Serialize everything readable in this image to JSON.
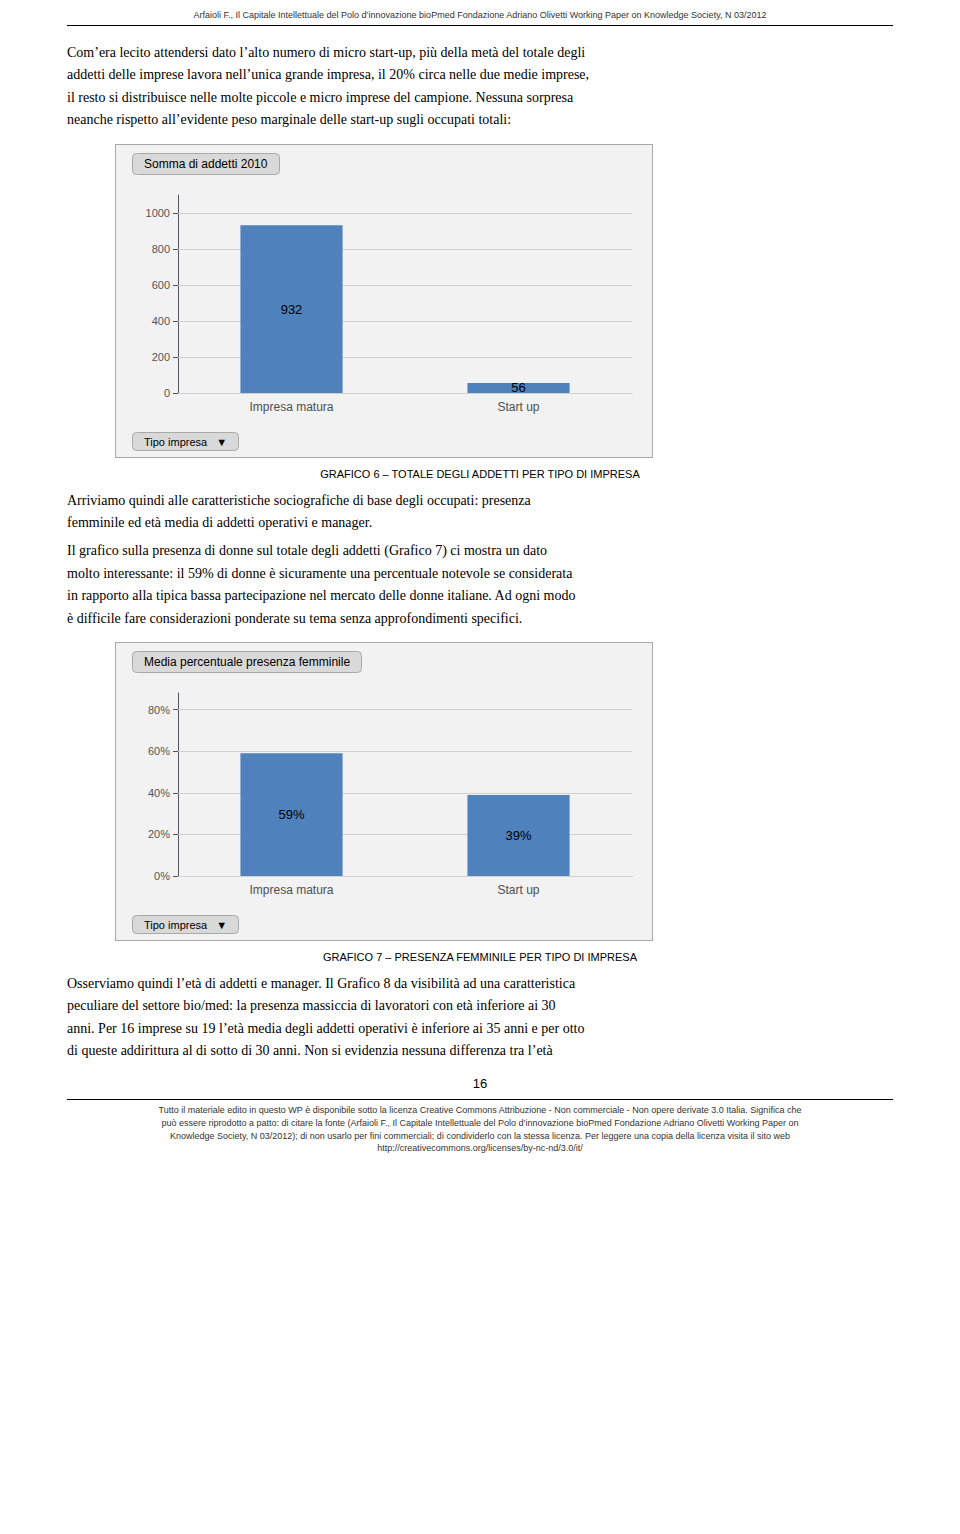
{
  "annotations": [
    "Arfaioli F., Il Capitale Intellettuale del Polo d’innovazione bioPmed Fondazione Adriano Olivetti Working Paper on Knowledge Society, N 03/2012",
    "Com’era lecito attendersi dato l’alto numero di micro start-up, più della metà del totale degli\naddetti delle imprese lavora nell’unica grande impresa, il 20% circa nelle due medie imprese,\nil resto si distribuisce nelle molte piccole e micro imprese del campione. Nessuna sorpresa\nneanche rispetto all’evidente peso marginale delle start-up sugli occupati totali:",
    "Arriviamo quindi alle caratteristiche sociografiche di base degli occupati: presenza\nfemminile ed età media di addetti operativi e manager.",
    "Il grafico sulla presenza di donne sul totale degli addetti (Grafico 7) ci mostra un dato\nmolto interessante: il 59% di donne è sicuramente una percentuale notevole se considerata\nin rapporto alla tipica bassa partecipazione nel mercato delle donne italiane. Ad ogni modo\nè difficile fare considerazioni ponderate su tema senza approfondimenti specifici.",
    "Osserviamo quindi l’età di addetti e manager. Il Grafico 8 da visibilità ad una caratteristica\npeculiare del settore bio/med: la presenza massiccia di lavoratori con età inferiore ai 30\nanni. Per 16 imprese su 19 l’età media degli addetti operativi è inferiore ai 35 anni e per otto\ndi queste addirittura al di sotto di 30 anni. Non si evidenzia nessuna differenza tra l’età",
    "16",
    "Tutto il materiale edito in questo WP è disponibile sotto la licenza Creative Commons Attribuzione - Non commerciale - Non opere derivate 3.0 Italia. Significa che",
    "può essere riprodotto a patto: di citare la fonte (Arfaioli F., Il Capitale Intellettuale del Polo d’innovazione bioPmed Fondazione Adriano Olivetti Working Paper on",
    "Knowledge Society, N 03/2012); di non usarlo per fini commerciali; di condividerlo con la stessa licenza. Per leggere una copia della licenza visita il sito web",
    "http://creativecommons.org/licenses/by-nc-nd/3.0/it/"
  ],
  "chart_data": [
    {
      "type": "bar",
      "title": "Somma di addetti 2010",
      "subtitle": "GRAFICO 6 – TOTALE DEGLI ADDETTI PER TIPO DI IMPRESA",
      "annotations": [
        "Tipo impresa",
        "▼"
      ],
      "categories": [
        "Impresa matura",
        "Start up"
      ],
      "values": [
        932,
        56
      ],
      "color": "#4f81bd",
      "ylim": [
        0,
        1100
      ],
      "yticks": [
        0,
        200,
        400,
        600,
        800,
        1000
      ],
      "grid": true,
      "data_labels": true
    },
    {
      "type": "bar",
      "title": "Media percentuale presenza femminile",
      "subtitle": "GRAFICO 7 – PRESENZA FEMMINILE PER TIPO DI IMPRESA",
      "annotations": [
        "Tipo impresa",
        "▼"
      ],
      "categories": [
        "Impresa matura",
        "Start up"
      ],
      "values": [
        0.59,
        0.39
      ],
      "value_labels": [
        "59%",
        "39%"
      ],
      "color": "#4f81bd",
      "ylim": [
        0,
        0.88
      ],
      "yticks": [
        {
          "value": 0.0,
          "label": "0%"
        },
        {
          "value": 0.2,
          "label": "20%"
        },
        {
          "value": 0.4,
          "label": "40%"
        },
        {
          "value": 0.6,
          "label": "60%"
        },
        {
          "value": 0.8,
          "label": "80%"
        }
      ],
      "grid": true,
      "data_labels": true
    }
  ]
}
